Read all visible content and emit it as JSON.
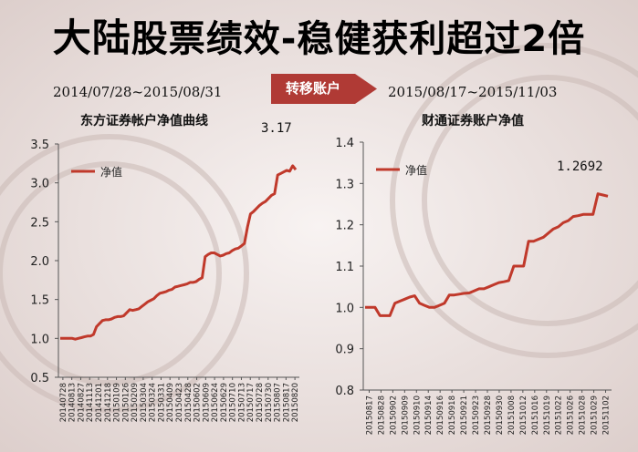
{
  "page_title": {
    "lead": "大陆",
    "rest": "股票绩效-稳健获利超过2倍"
  },
  "transfer_label": "转移账户",
  "left": {
    "period": "2014/07/28~2015/08/31",
    "callout": "3.17"
  },
  "right": {
    "period": "2015/08/17~2015/11/03",
    "callout": "1.2692"
  },
  "colors": {
    "line": "#c0392b",
    "arrow": "#b03a35",
    "grid": "#d9cfcc"
  },
  "chart_data": [
    {
      "type": "line",
      "title": "东方证券帐户净值曲线",
      "legend": [
        "净值"
      ],
      "legend_position": "top-left",
      "ylim": [
        0.5,
        3.5
      ],
      "yticks": [
        0.5,
        1.0,
        1.5,
        2.0,
        2.5,
        3.0,
        3.5
      ],
      "ytick_labels": [
        "0.5",
        "1.0",
        "1.5",
        "2.0",
        "2.5",
        "3.0",
        "3.5"
      ],
      "x_tick_labels": [
        "20140728",
        "20140813",
        "20140827",
        "20141113",
        "20141201",
        "20141218",
        "20150109",
        "20150126",
        "20150209",
        "20150304",
        "20150324",
        "20150331",
        "20150409",
        "20150423",
        "20150428",
        "20150602",
        "20150609",
        "20150624",
        "20150629",
        "20150710",
        "20150713",
        "20150717",
        "20150728",
        "20150730",
        "20150807",
        "20150817",
        "20150820"
      ],
      "grid": false,
      "series": [
        {
          "name": "净值",
          "values": [
            1.0,
            1.0,
            1.0,
            1.0,
            1.0,
            0.99,
            1.0,
            1.01,
            1.02,
            1.03,
            1.03,
            1.05,
            1.15,
            1.19,
            1.23,
            1.24,
            1.24,
            1.25,
            1.27,
            1.28,
            1.28,
            1.29,
            1.33,
            1.37,
            1.36,
            1.37,
            1.38,
            1.41,
            1.44,
            1.47,
            1.49,
            1.51,
            1.55,
            1.58,
            1.59,
            1.6,
            1.62,
            1.63,
            1.66,
            1.67,
            1.68,
            1.69,
            1.7,
            1.72,
            1.72,
            1.73,
            1.76,
            1.78,
            2.05,
            2.08,
            2.1,
            2.1,
            2.08,
            2.06,
            2.07,
            2.09,
            2.1,
            2.13,
            2.15,
            2.16,
            2.19,
            2.22,
            2.43,
            2.6,
            2.63,
            2.67,
            2.71,
            2.74,
            2.76,
            2.8,
            2.84,
            2.86,
            3.1,
            3.12,
            3.14,
            3.16,
            3.15,
            3.22,
            3.17
          ]
        }
      ]
    },
    {
      "type": "line",
      "title": "财通证券账户净值",
      "legend": [
        "净值"
      ],
      "legend_position": "top-left",
      "ylim": [
        0.8,
        1.4
      ],
      "yticks": [
        0.8,
        0.9,
        1.0,
        1.1,
        1.2,
        1.3,
        1.4
      ],
      "ytick_labels": [
        "0.8",
        "0.9",
        "1.0",
        "1.1",
        "1.2",
        "1.3",
        "1.4"
      ],
      "x_tick_labels": [
        "20150817",
        "20150828",
        "20150902",
        "20150909",
        "20150910",
        "20150914",
        "20150916",
        "20150918",
        "20150921",
        "20150923",
        "20150928",
        "20150930",
        "20151008",
        "20151012",
        "20151016",
        "20151019",
        "20151022",
        "20151026",
        "20151028",
        "20151029",
        "20151102"
      ],
      "grid": false,
      "series": [
        {
          "name": "净值",
          "values": [
            1.0,
            1.0,
            1.0,
            0.98,
            0.98,
            0.98,
            1.01,
            1.015,
            1.02,
            1.025,
            1.028,
            1.01,
            1.005,
            1.0,
            1.0,
            1.005,
            1.01,
            1.03,
            1.03,
            1.032,
            1.034,
            1.035,
            1.04,
            1.045,
            1.045,
            1.05,
            1.055,
            1.06,
            1.062,
            1.065,
            1.1,
            1.1,
            1.1,
            1.16,
            1.16,
            1.165,
            1.17,
            1.18,
            1.19,
            1.195,
            1.205,
            1.21,
            1.22,
            1.222,
            1.225,
            1.225,
            1.225,
            1.275,
            1.272,
            1.2692
          ]
        }
      ]
    }
  ]
}
